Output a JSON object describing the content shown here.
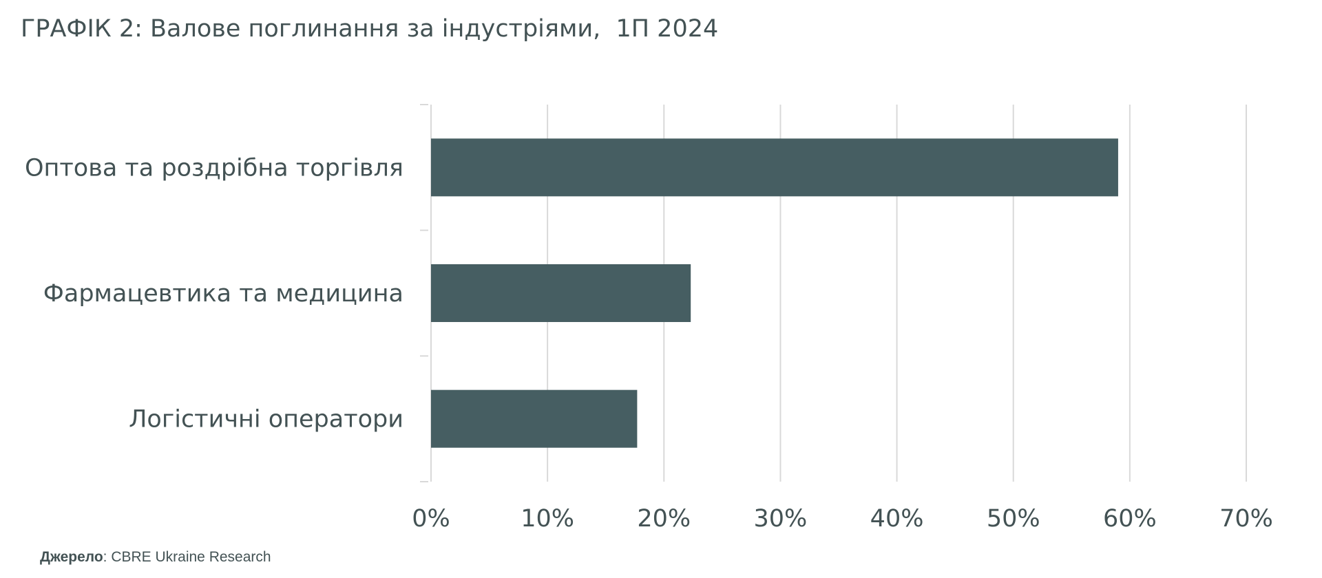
{
  "title": "ГРАФІК 2: Валове поглинання за індустріями,  1П 2024",
  "source": {
    "label": "Джерело",
    "text": ": CBRE Ukraine Research"
  },
  "colors": {
    "bar": "#465e62",
    "text": "#435254",
    "grid": "#d9d9d9"
  },
  "chart_data": {
    "type": "bar",
    "orientation": "horizontal",
    "categories": [
      "Оптова та роздрібна торгівля",
      "Фармацевтика та медицина",
      "Логістичні оператори"
    ],
    "values": [
      59,
      22.3,
      17.7
    ],
    "xlim": [
      0,
      70
    ],
    "x_ticks": [
      "0%",
      "10%",
      "20%",
      "30%",
      "40%",
      "50%",
      "60%",
      "70%"
    ],
    "grid": true,
    "legend": "none"
  }
}
